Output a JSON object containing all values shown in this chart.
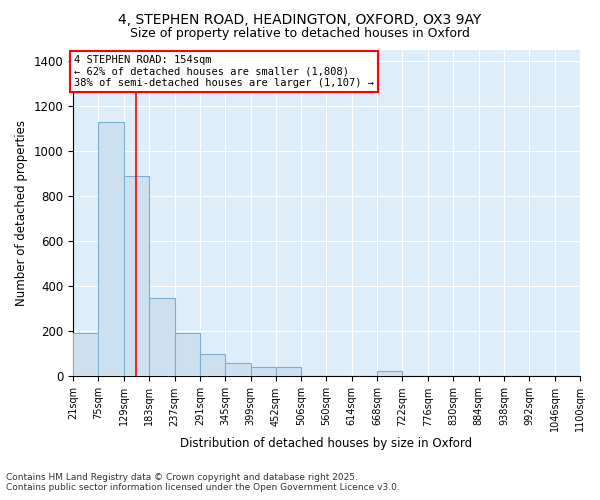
{
  "title_line1": "4, STEPHEN ROAD, HEADINGTON, OXFORD, OX3 9AY",
  "title_line2": "Size of property relative to detached houses in Oxford",
  "xlabel": "Distribution of detached houses by size in Oxford",
  "ylabel": "Number of detached properties",
  "bar_color": "#cde0f0",
  "bar_edge_color": "#7aafd4",
  "background_color": "#ddeefa",
  "grid_color": "#ffffff",
  "bin_edges": [
    21,
    75,
    129,
    183,
    237,
    291,
    345,
    399,
    452,
    506,
    560,
    614,
    668,
    722,
    776,
    830,
    884,
    938,
    992,
    1046,
    1100
  ],
  "bar_heights": [
    195,
    1130,
    890,
    350,
    195,
    100,
    60,
    40,
    40,
    0,
    0,
    0,
    25,
    0,
    0,
    0,
    0,
    0,
    0,
    0
  ],
  "tick_labels": [
    "21sqm",
    "75sqm",
    "129sqm",
    "183sqm",
    "237sqm",
    "291sqm",
    "345sqm",
    "399sqm",
    "452sqm",
    "506sqm",
    "560sqm",
    "614sqm",
    "668sqm",
    "722sqm",
    "776sqm",
    "830sqm",
    "884sqm",
    "938sqm",
    "992sqm",
    "1046sqm",
    "1100sqm"
  ],
  "ylim": [
    0,
    1450
  ],
  "yticks": [
    0,
    200,
    400,
    600,
    800,
    1000,
    1200,
    1400
  ],
  "red_line_x": 154,
  "annotation_text": "4 STEPHEN ROAD: 154sqm\n← 62% of detached houses are smaller (1,808)\n38% of semi-detached houses are larger (1,107) →",
  "annotation_box_color": "white",
  "annotation_box_edge_color": "red",
  "footer_line1": "Contains HM Land Registry data © Crown copyright and database right 2025.",
  "footer_line2": "Contains public sector information licensed under the Open Government Licence v3.0.",
  "title_fontsize": 10,
  "subtitle_fontsize": 9,
  "annotation_fontsize": 7.5,
  "footer_fontsize": 6.5
}
